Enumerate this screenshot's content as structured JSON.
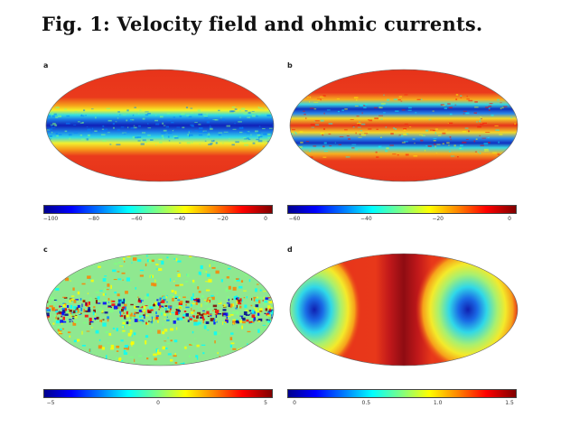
{
  "figure": {
    "title": "Fig. 1: Velocity field and ohmic currents."
  },
  "panels": [
    {
      "letter": "a",
      "colorbar_label": "",
      "colorbar_ticks": [
        "−100",
        "−80",
        "−60",
        "−40",
        "−20",
        "0"
      ],
      "colormap": "jet",
      "pattern": "zonal-jet"
    },
    {
      "letter": "b",
      "colorbar_label": "",
      "colorbar_ticks": [
        "−60",
        "−40",
        "−20",
        "0"
      ],
      "colormap": "jet",
      "pattern": "double-jet"
    },
    {
      "letter": "c",
      "colorbar_label": "",
      "colorbar_ticks": [
        "−5",
        "0",
        "5"
      ],
      "colormap": "jet",
      "pattern": "noise"
    },
    {
      "letter": "d",
      "colorbar_label": "",
      "colorbar_ticks": [
        "0",
        "0.5",
        "1.0",
        "1.5"
      ],
      "colormap": "jet",
      "pattern": "currents"
    }
  ],
  "colors": {
    "jet": [
      "#00008f",
      "#0000ff",
      "#0080ff",
      "#00ffff",
      "#80ff80",
      "#ffff00",
      "#ff8000",
      "#ff0000",
      "#800000"
    ]
  }
}
